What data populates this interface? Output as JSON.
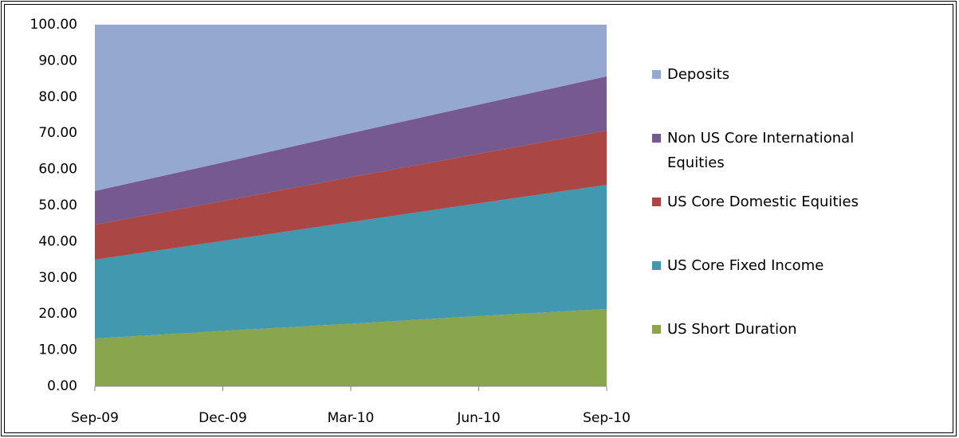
{
  "chart_data": {
    "type": "stacked-area",
    "categories": [
      "Sep-09",
      "Dec-09",
      "Mar-10",
      "Jun-10",
      "Sep-10"
    ],
    "series": [
      {
        "name": "US Short Duration",
        "color": "#89a54e",
        "values": [
          13.2,
          15.3,
          17.3,
          19.4,
          21.4
        ]
      },
      {
        "name": "US Core Fixed Income",
        "color": "#4198af",
        "values": [
          21.8,
          24.9,
          28.1,
          31.2,
          34.3
        ]
      },
      {
        "name": "US Core Domestic Equities",
        "color": "#aa4643",
        "values": [
          9.7,
          11.0,
          12.4,
          13.7,
          15.0
        ]
      },
      {
        "name": "Non US Core International Equities",
        "color": "#75598f",
        "values": [
          9.3,
          10.7,
          12.2,
          13.6,
          15.0
        ]
      },
      {
        "name": "Deposits",
        "color": "#95a9d0",
        "values": [
          46.0,
          38.1,
          30.0,
          22.1,
          14.3
        ]
      }
    ],
    "ylim": [
      0,
      100
    ],
    "yticks": [
      {
        "value": 0,
        "label": "0.00"
      },
      {
        "value": 10,
        "label": "10.00"
      },
      {
        "value": 20,
        "label": "20.00"
      },
      {
        "value": 30,
        "label": "30.00"
      },
      {
        "value": 40,
        "label": "40.00"
      },
      {
        "value": 50,
        "label": "50.00"
      },
      {
        "value": 60,
        "label": "60.00"
      },
      {
        "value": 70,
        "label": "70.00"
      },
      {
        "value": 80,
        "label": "80.00"
      },
      {
        "value": 90,
        "label": "90.00"
      },
      {
        "value": 100,
        "label": "100.00"
      }
    ],
    "legend": "right"
  }
}
